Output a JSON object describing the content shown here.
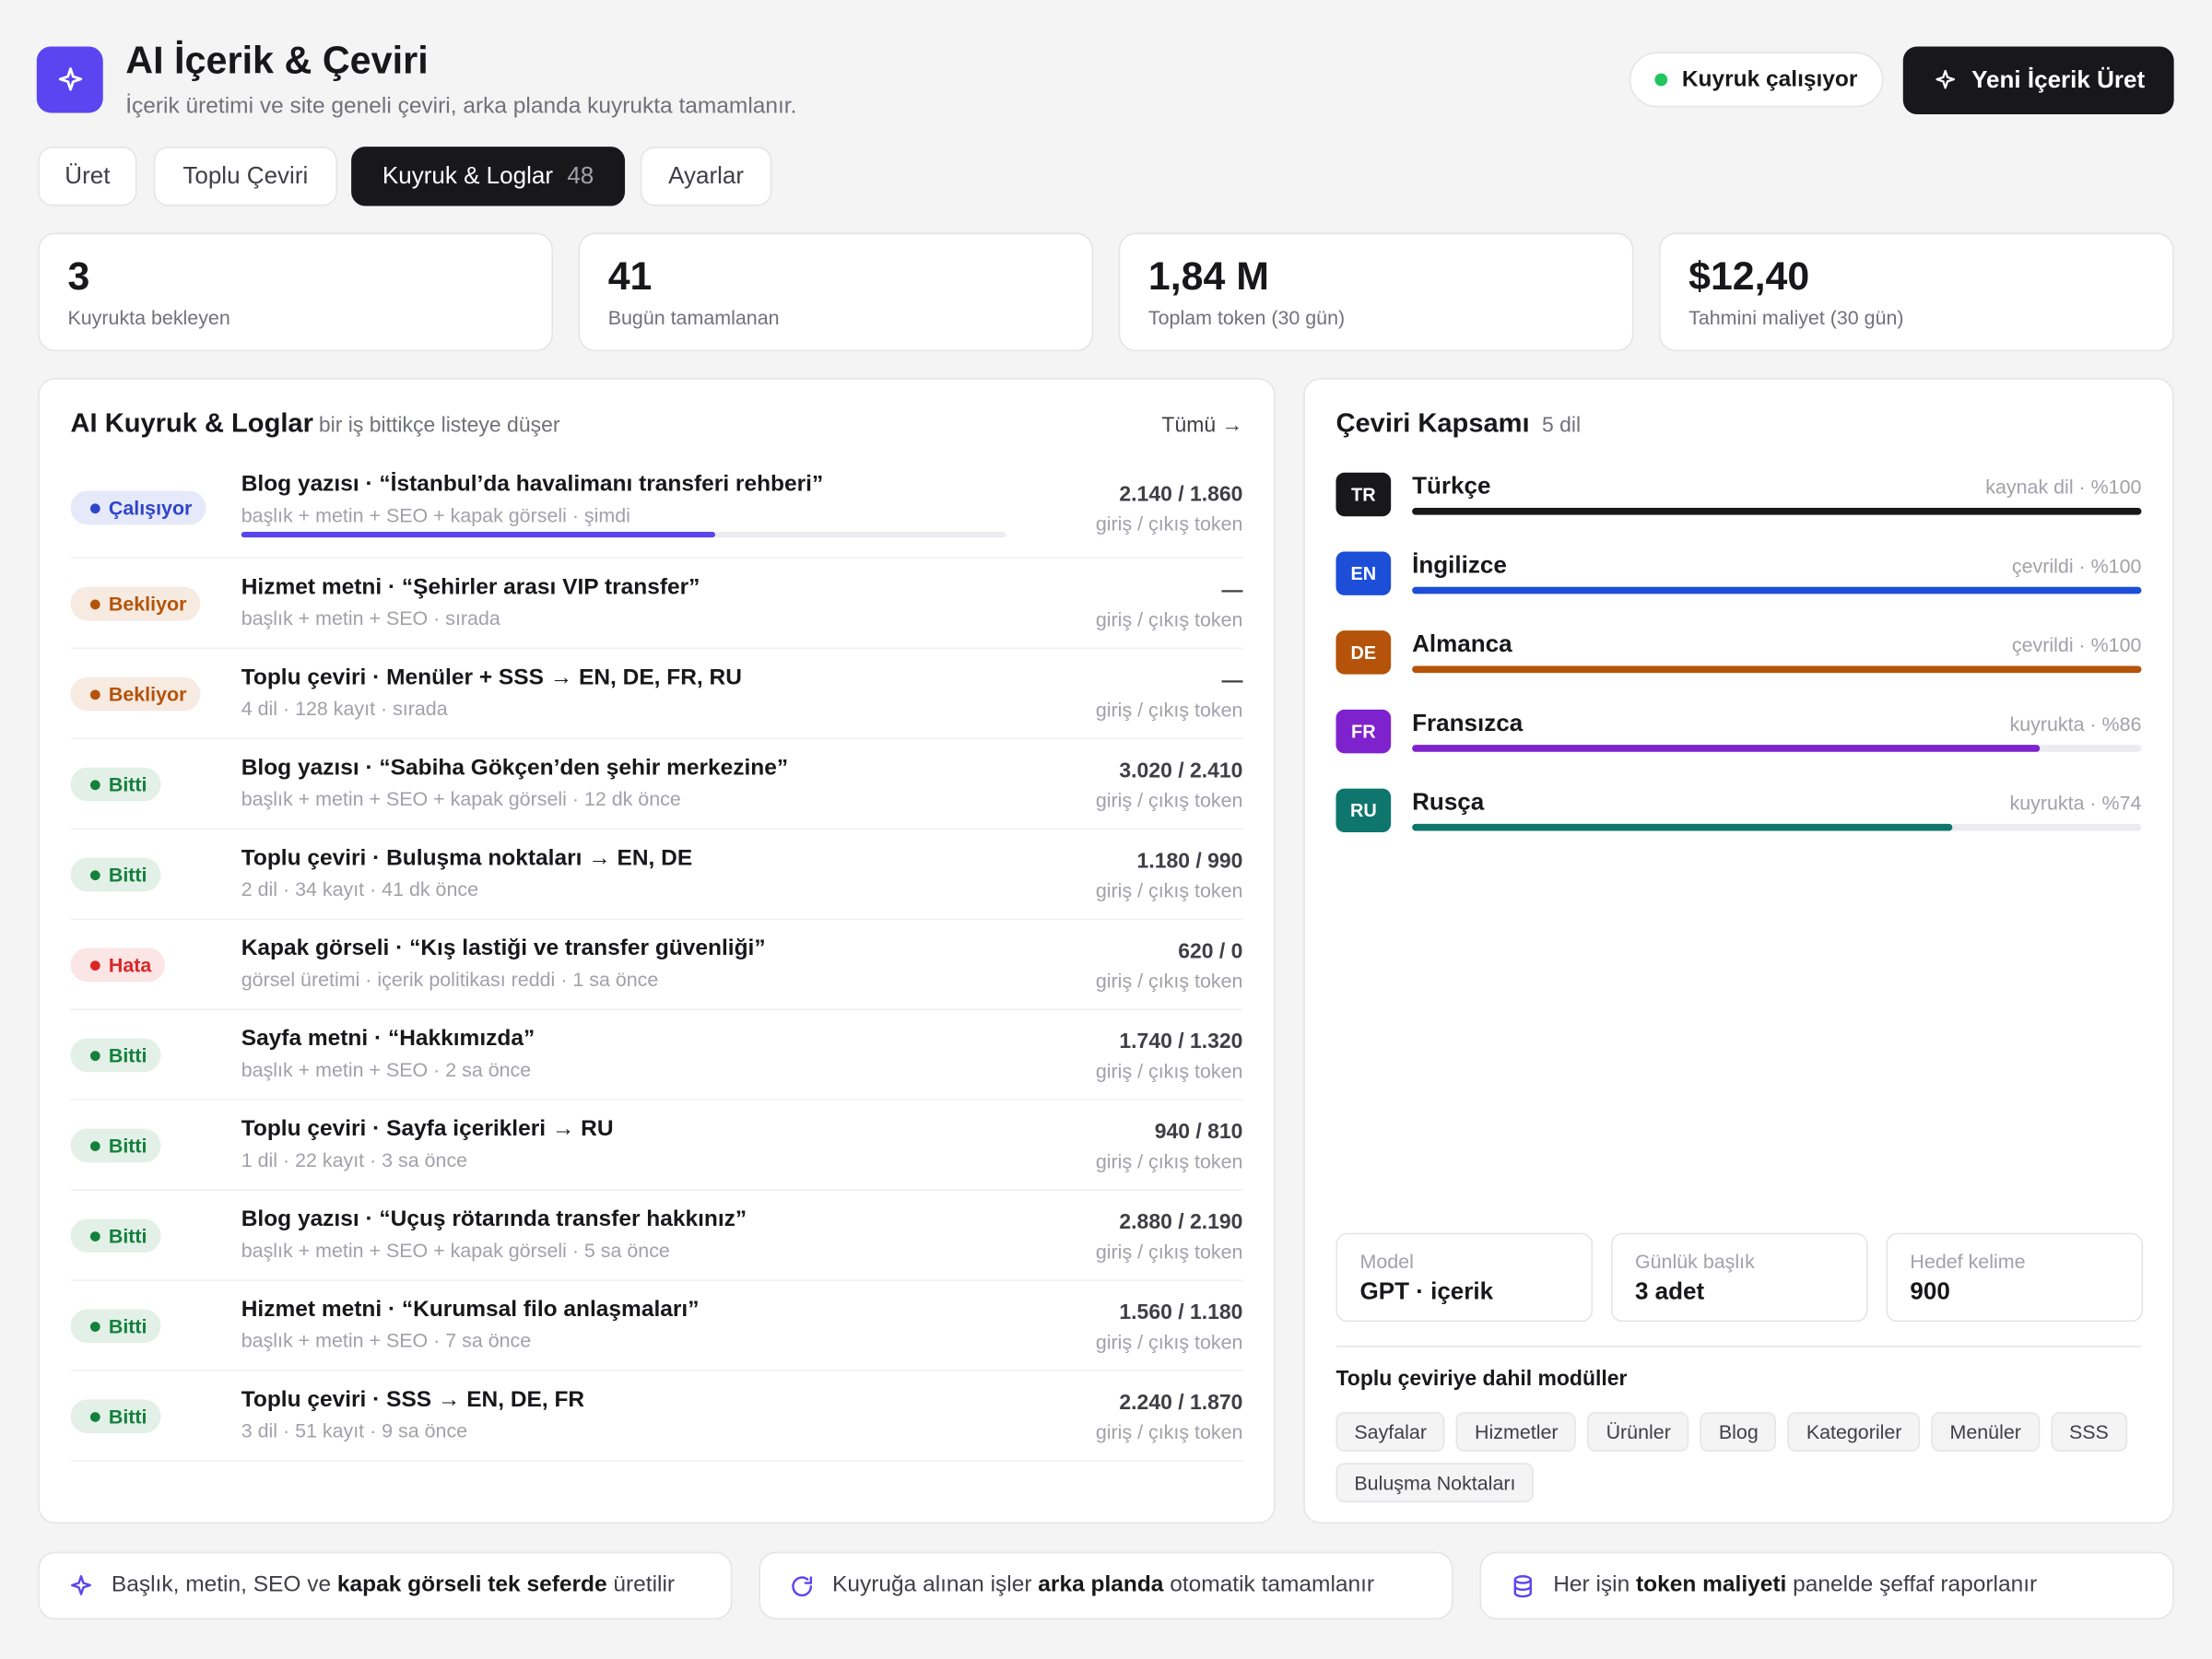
{
  "header": {
    "title": "AI İçerik & Çeviri",
    "subtitle": "İçerik üretimi ve site geneli çeviri, arka planda kuyrukta tamamlanır.",
    "status": "Kuyruk çalışıyor",
    "button": "Yeni İçerik Üret"
  },
  "tabs": [
    {
      "label": "Üret"
    },
    {
      "label": "Toplu Çeviri"
    },
    {
      "label": "Kuyruk & Loglar",
      "count": "48",
      "active": true
    },
    {
      "label": "Ayarlar"
    }
  ],
  "stats": [
    {
      "value": "3",
      "label": "Kuyrukta bekleyen"
    },
    {
      "value": "41",
      "label": "Bugün tamamlanan"
    },
    {
      "value": "1,84 M",
      "label": "Toplam token (30 gün)"
    },
    {
      "value": "$12,40",
      "label": "Tahmini maliyet (30 gün)"
    }
  ],
  "queue": {
    "title": "AI Kuyruk & Loglar",
    "subtitle": "bir iş bittikçe listeye düşer",
    "link": "Tümü →",
    "jobs": [
      {
        "status": "Çalışıyor",
        "color": "#2f45c9",
        "title": "Blog yazısı · “İstanbul’da havalimanı transferi rehberi”",
        "meta": "başlık + metin + SEO + kapak görseli · şimdi",
        "tokens": "2.140 / 1.860",
        "token_label": "giriş / çıkış token",
        "progress": 62
      },
      {
        "status": "Bekliyor",
        "color": "#b45309",
        "title": "Hizmet metni · “Şehirler arası VIP transfer”",
        "meta": "başlık + metin + SEO · sırada",
        "tokens": "—",
        "token_label": "giriş / çıkış token"
      },
      {
        "status": "Bekliyor",
        "color": "#b45309",
        "title": "Toplu çeviri · Menüler + SSS → EN, DE, FR, RU",
        "meta": "4 dil · 128 kayıt · sırada",
        "tokens": "—",
        "token_label": "giriş / çıkış token"
      },
      {
        "status": "Bitti",
        "color": "#15803d",
        "title": "Blog yazısı · “Sabiha Gökçen’den şehir merkezine”",
        "meta": "başlık + metin + SEO + kapak görseli · 12 dk önce",
        "tokens": "3.020 / 2.410",
        "token_label": "giriş / çıkış token"
      },
      {
        "status": "Bitti",
        "color": "#15803d",
        "title": "Toplu çeviri · Buluşma noktaları → EN, DE",
        "meta": "2 dil · 34 kayıt · 41 dk önce",
        "tokens": "1.180 / 990",
        "token_label": "giriş / çıkış token"
      },
      {
        "status": "Hata",
        "color": "#dc2626",
        "title": "Kapak görseli · “Kış lastiği ve transfer güvenliği”",
        "meta": "görsel üretimi · içerik politikası reddi · 1 sa önce",
        "tokens": "620 / 0",
        "token_label": "giriş / çıkış token"
      },
      {
        "status": "Bitti",
        "color": "#15803d",
        "title": "Sayfa metni · “Hakkımızda”",
        "meta": "başlık + metin + SEO · 2 sa önce",
        "tokens": "1.740 / 1.320",
        "token_label": "giriş / çıkış token"
      },
      {
        "status": "Bitti",
        "color": "#15803d",
        "title": "Toplu çeviri · Sayfa içerikleri → RU",
        "meta": "1 dil · 22 kayıt · 3 sa önce",
        "tokens": "940 / 810",
        "token_label": "giriş / çıkış token"
      },
      {
        "status": "Bitti",
        "color": "#15803d",
        "title": "Blog yazısı · “Uçuş rötarında transfer hakkınız”",
        "meta": "başlık + metin + SEO + kapak görseli · 5 sa önce",
        "tokens": "2.880 / 2.190",
        "token_label": "giriş / çıkış token"
      },
      {
        "status": "Bitti",
        "color": "#15803d",
        "title": "Hizmet metni · “Kurumsal filo anlaşmaları”",
        "meta": "başlık + metin + SEO · 7 sa önce",
        "tokens": "1.560 / 1.180",
        "token_label": "giriş / çıkış token"
      },
      {
        "status": "Bitti",
        "color": "#15803d",
        "title": "Toplu çeviri · SSS → EN, DE, FR",
        "meta": "3 dil · 51 kayıt · 9 sa önce",
        "tokens": "2.240 / 1.870",
        "token_label": "giriş / çıkış token"
      }
    ]
  },
  "coverage": {
    "title": "Çeviri Kapsamı",
    "count": "5 dil",
    "languages": [
      {
        "code": "TR",
        "name": "Türkçe",
        "note": "kaynak dil · %100",
        "percent": 100,
        "color": "#18181b"
      },
      {
        "code": "EN",
        "name": "İngilizce",
        "note": "çevrildi · %100",
        "percent": 100,
        "color": "#1d4ed8"
      },
      {
        "code": "DE",
        "name": "Almanca",
        "note": "çevrildi · %100",
        "percent": 100,
        "color": "#b45309"
      },
      {
        "code": "FR",
        "name": "Fransızca",
        "note": "kuyrukta · %86",
        "percent": 86,
        "color": "#7e22ce"
      },
      {
        "code": "RU",
        "name": "Rusça",
        "note": "kuyrukta · %74",
        "percent": 74,
        "color": "#0f766e"
      }
    ],
    "settings": [
      {
        "label": "Model",
        "value": "GPT · içerik"
      },
      {
        "label": "Günlük başlık",
        "value": "3 adet"
      },
      {
        "label": "Hedef kelime",
        "value": "900"
      }
    ],
    "modules_title": "Toplu çeviriye dahil modüller",
    "modules": [
      "Sayfalar",
      "Hizmetler",
      "Ürünler",
      "Blog",
      "Kategoriler",
      "Menüler",
      "SSS",
      "Buluşma Noktaları"
    ]
  },
  "features": [
    [
      {
        "text": "Başlık, metin, SEO ve "
      },
      {
        "text": "kapak görseli tek seferde",
        "bold": true
      },
      {
        "text": " üretilir"
      }
    ],
    [
      {
        "text": "Kuyruğa alınan işler "
      },
      {
        "text": "arka planda",
        "bold": true
      },
      {
        "text": " otomatik tamamlanır"
      }
    ],
    [
      {
        "text": "Her işin "
      },
      {
        "text": "token maliyeti",
        "bold": true
      },
      {
        "text": " panelde şeffaf raporlanır"
      }
    ]
  ]
}
